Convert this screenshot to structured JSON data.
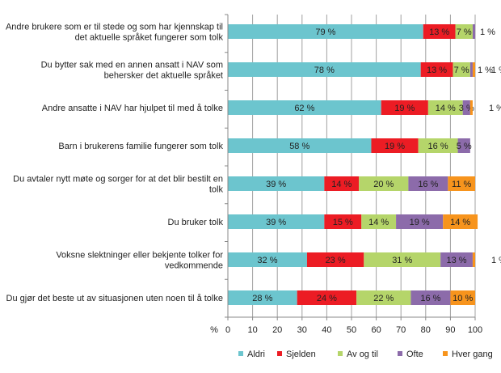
{
  "chart_data": {
    "type": "bar",
    "orientation": "horizontal",
    "stacked": true,
    "categories": [
      [
        "Andre brukere som er til stede og som har kjennskap til",
        "det aktuelle språket fungerer som tolk"
      ],
      [
        "Du bytter sak med en annen ansatt i NAV som",
        "behersker det aktuelle språket"
      ],
      [
        "Andre ansatte i NAV har hjulpet til med å tolke"
      ],
      [
        "Barn i brukerens familie fungerer som tolk"
      ],
      [
        "Du avtaler nytt møte og sorger for at det blir bestilt en",
        "tolk"
      ],
      [
        "Du bruker tolk"
      ],
      [
        "Voksne slektninger eller bekjente tolker for",
        "vedkommende"
      ],
      [
        "Du gjør det beste ut av situasjonen uten noen til å tolke"
      ]
    ],
    "series": [
      {
        "name": "Aldri",
        "color": "#6CC5CE",
        "values": [
          79,
          78,
          62,
          58,
          39,
          39,
          32,
          28
        ]
      },
      {
        "name": "Sjelden",
        "color": "#EC1C24",
        "values": [
          13,
          13,
          19,
          19,
          14,
          15,
          23,
          24
        ]
      },
      {
        "name": "Av og til",
        "color": "#B5D56A",
        "values": [
          7,
          7,
          14,
          16,
          20,
          14,
          31,
          22
        ]
      },
      {
        "name": "Ofte",
        "color": "#8C6BAA",
        "values": [
          1,
          1,
          3,
          5,
          16,
          19,
          13,
          16
        ]
      },
      {
        "name": "Hver gang",
        "color": "#F7941D",
        "values": [
          0,
          1,
          1,
          0,
          11,
          14,
          1,
          10
        ]
      }
    ],
    "value_suffix": " %",
    "xlabel": "%",
    "xlim": [
      0,
      100
    ],
    "xticks": [
      "0",
      "10",
      "20",
      "30",
      "40",
      "50",
      "60",
      "70",
      "80",
      "90",
      "100"
    ],
    "grid": true,
    "legend_position": "bottom"
  }
}
